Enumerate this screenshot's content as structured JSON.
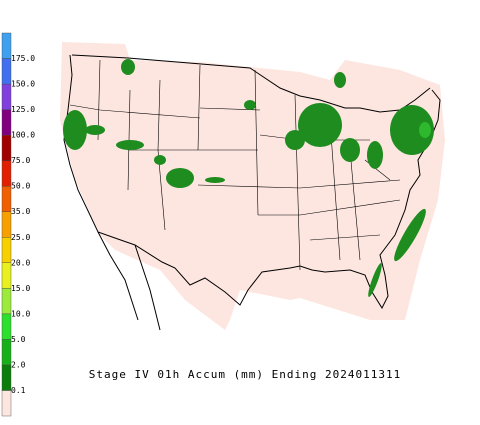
{
  "title": "Stage IV 01h Accum (mm) Ending 2024011311",
  "legend": {
    "labels": [
      "0.1",
      "2.0",
      "5.0",
      "10.0",
      "15.0",
      "20.0",
      "25.0",
      "35.0",
      "50.0",
      "75.0",
      "100.0",
      "125.0",
      "150.0",
      "175.0"
    ],
    "colors": [
      "#fde6e0",
      "#0a7d0a",
      "#18b018",
      "#2ee02e",
      "#9bea3c",
      "#e8f020",
      "#f8d000",
      "#f8a000",
      "#f06000",
      "#e02000",
      "#a00000",
      "#800080",
      "#8040e0",
      "#4070f0",
      "#40a0f0"
    ]
  }
}
